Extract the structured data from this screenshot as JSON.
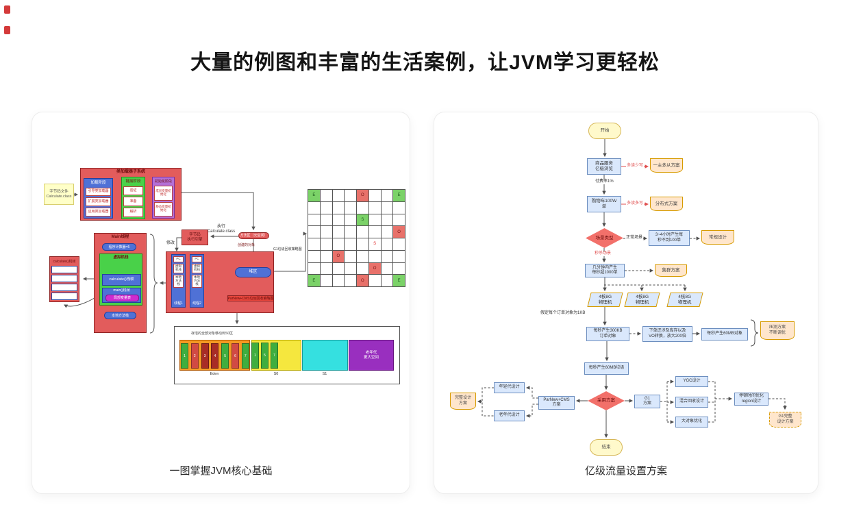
{
  "page": {
    "title": "大量的例图和丰富的生活案例，让JVM学习更轻松"
  },
  "colors": {
    "node_blue": "#dae8fc",
    "node_blue_border": "#6c8ebf",
    "doc_orange": "#ffe6cc",
    "doc_border": "#d79b00",
    "diamond_red": "#f2706a",
    "red_box": "#e25c5c",
    "blue_box": "#4f71d6",
    "green_box": "#49d149",
    "purple_box": "#b36fd6",
    "magenta": "#cf2bcf",
    "yellow_note": "#ffffc8",
    "red_label": "#e04f4f"
  },
  "left_card": {
    "caption": "一图掌握JVM核心基础",
    "sticky": "字节码文件\nCalculate.class",
    "subsystem": {
      "title": "类加载器子系统",
      "load": {
        "title": "加载阶段",
        "items": [
          "引导类加载器",
          "扩展类加载器",
          "应用类加载器"
        ]
      },
      "link": {
        "title": "链接阶段",
        "items": [
          "验证",
          "准备",
          "解析"
        ]
      },
      "init": {
        "title": "初始化阶段",
        "items": [
          "成员变量初始化",
          "静态变量初始化"
        ]
      }
    },
    "engine": "字节码\n执行引擎",
    "method_area": "方法区（元空间）",
    "labels": {
      "exec": "执行\nCalculate.class",
      "modify": "修改",
      "created": "创建的对象",
      "g1": "G1垃圾回收策略图",
      "parnew": "ParNew+CMS垃圾回收策略图"
    },
    "main_thread": {
      "title": "Main线程",
      "pc": "程序计数器=5",
      "vm_stack": "虚拟机栈",
      "calc_frame": "calculate()栈帧",
      "main_frame": "main()栈帧",
      "local_vars": "局部变量表",
      "native_stack": "本地方法栈"
    },
    "frame_detail": {
      "title": "calculate()栈帧",
      "items": [
        "局部变量表",
        "操作数栈",
        "动态链接",
        "方法出口"
      ]
    },
    "runtime": {
      "thread_parts": [
        "PC",
        "虚拟机栈",
        "本地方法栈"
      ],
      "threads": [
        "线程1",
        "线程2"
      ],
      "heap": "堆区"
    },
    "g1_grid": {
      "rows": 8,
      "cols": 8,
      "cells": [
        {
          "r": 0,
          "c": 0,
          "t": "E",
          "k": "g"
        },
        {
          "r": 0,
          "c": 4,
          "t": "O",
          "k": "r"
        },
        {
          "r": 0,
          "c": 7,
          "t": "E",
          "k": "g"
        },
        {
          "r": 2,
          "c": 4,
          "t": "S",
          "k": "g"
        },
        {
          "r": 3,
          "c": 7,
          "t": "O",
          "k": "r"
        },
        {
          "r": 4,
          "c": 5,
          "t": "S",
          "k": "c"
        },
        {
          "r": 5,
          "c": 2,
          "t": "O",
          "k": "r"
        },
        {
          "r": 6,
          "c": 5,
          "t": "O",
          "k": "r"
        },
        {
          "r": 7,
          "c": 0,
          "t": "E",
          "k": "g"
        },
        {
          "r": 7,
          "c": 4,
          "t": "O",
          "k": "r"
        },
        {
          "r": 7,
          "c": 7,
          "t": "E",
          "k": "g"
        }
      ]
    },
    "gc": {
      "note": "存活的全部对象移动到S0区",
      "eden_label": "Eden",
      "s0_label": "S0",
      "s1_label": "S1",
      "old_text": "老年代\n更大空间",
      "eden_bars": [
        {
          "n": "1",
          "k": "g"
        },
        {
          "n": "2",
          "k": "r"
        },
        {
          "n": "3",
          "k": "d"
        },
        {
          "n": "4",
          "k": "d"
        },
        {
          "n": "5",
          "k": "g"
        },
        {
          "n": "6",
          "k": "r"
        },
        {
          "n": "7",
          "k": "g"
        }
      ],
      "s0_bars": [
        "1",
        "5",
        "7"
      ]
    }
  },
  "right_card": {
    "caption": "亿级流量设置方案",
    "nodes": {
      "start": "开始",
      "browse": "商品服务\n亿级浏览",
      "master_slave": "一主多从方案",
      "cart": "购物车100W\n单",
      "distributed": "分布式方案",
      "scene": "场景类型",
      "normal_rate": "3~4小时产生每\n秒不到100单",
      "normal_design": "常规设计",
      "seckill_rate": "几分钟内产生\n每秒超1000单",
      "cluster": "集群方案",
      "machine": "4核8G\n物理机",
      "kb300": "每秒产生300KB\n订单对象",
      "vo": "下单还涉及库存以及\nVO转换，放大200倍",
      "mb60_obj": "每秒产生60MB对象",
      "stress": "压测方案\n不断调优",
      "mb60_garbage": "每秒产生60MB垃圾",
      "adopt": "采用方案",
      "parnew": "ParNew+CMS\n方案",
      "young": "年轻代设计",
      "old": "老年代设计",
      "full_design": "完整设计\n方案",
      "g1": "G1\n方案",
      "ygc": "YGC设计",
      "mixed": "混合回收设计",
      "big_obj": "大对象优化",
      "pause": "停顿时间优化\nregion设计",
      "g1_full": "G1完整\n设计方案",
      "end": "结束"
    },
    "edges": {
      "pay_rate": "付费率1%",
      "read_less": "多读少写",
      "read_more": "多读多写",
      "normal": "正常场景",
      "seckill": "秒杀场景",
      "assume": "假定每个订单对象为1KB"
    }
  }
}
